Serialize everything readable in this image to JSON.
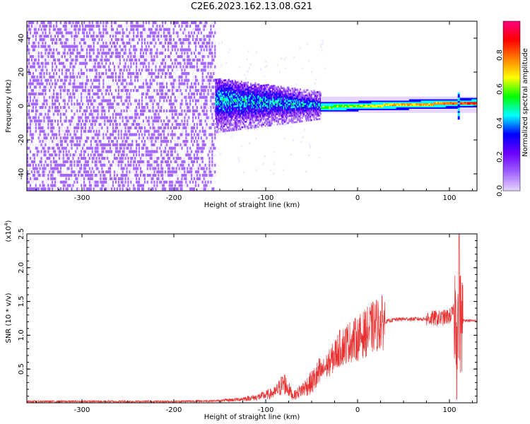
{
  "title": "C2E6.2023.162.13.08.G21",
  "colors": {
    "snr_line": "#e83030",
    "background": "#ffffff",
    "axis": "#000000"
  },
  "chart_data": [
    {
      "type": "heatmap",
      "title": "",
      "xlabel": "Height of straight line (km)",
      "ylabel": "Frequency (Hz)",
      "xlim": [
        -360,
        130
      ],
      "ylim": [
        -50,
        50
      ],
      "xticks": [
        -300,
        -200,
        -100,
        0,
        100
      ],
      "yticks": [
        -40,
        -20,
        0,
        20,
        40
      ],
      "colorbar": {
        "label": "Normalized spectral amplitude",
        "range": [
          0,
          1
        ],
        "ticks": [
          "0.0",
          "0.2",
          "0.4",
          "0.6",
          "0.8"
        ],
        "colormap": [
          "#e6d6ff",
          "#a060ff",
          "#6a00ff",
          "#0000ff",
          "#00ffff",
          "#00ff00",
          "#ffff00",
          "#ff8000",
          "#ff0000",
          "#ff0080"
        ]
      },
      "regions": [
        {
          "name": "noise",
          "x_range": [
            -360,
            -155
          ],
          "freq_spread": 50,
          "amplitude": 0.1
        },
        {
          "name": "transition",
          "x_range": [
            -155,
            -40
          ],
          "freq_spread": 10,
          "amplitude": 0.4
        },
        {
          "name": "signal",
          "x_range": [
            -40,
            130
          ],
          "freq_spread": 2,
          "amplitude": 0.75
        }
      ]
    },
    {
      "type": "line",
      "title": "",
      "xlabel": "Height of straight line (km)",
      "ylabel": "SNR (10 * v/v)",
      "y_scale_label": "(x10",
      "y_scale_exp": "4",
      "xlim": [
        -360,
        130
      ],
      "ylim": [
        0,
        2.5
      ],
      "xticks": [
        -300,
        -200,
        -100,
        0,
        100
      ],
      "yticks": [
        "0.5",
        "1.0",
        "1.5",
        "2.0",
        "2.5"
      ],
      "ytick_values": [
        0.5,
        1.0,
        1.5,
        2.0,
        2.5
      ],
      "series": [
        {
          "x": [
            -360,
            -300,
            -250,
            -200,
            -150,
            -130,
            -110,
            -90,
            -80,
            -70,
            -60,
            -50,
            -40,
            -30,
            -20,
            -10,
            0,
            10,
            20,
            30,
            40,
            50,
            60,
            70,
            80,
            90,
            100,
            105,
            110,
            115,
            120,
            130
          ],
          "values": [
            0.02,
            0.02,
            0.02,
            0.02,
            0.03,
            0.05,
            0.08,
            0.15,
            0.3,
            0.1,
            0.2,
            0.3,
            0.45,
            0.6,
            0.8,
            0.9,
            0.95,
            1.05,
            1.15,
            1.2,
            1.23,
            1.24,
            1.24,
            1.24,
            1.25,
            1.25,
            1.28,
            1.35,
            1.2,
            1.22,
            1.22,
            1.21
          ]
        }
      ]
    }
  ]
}
